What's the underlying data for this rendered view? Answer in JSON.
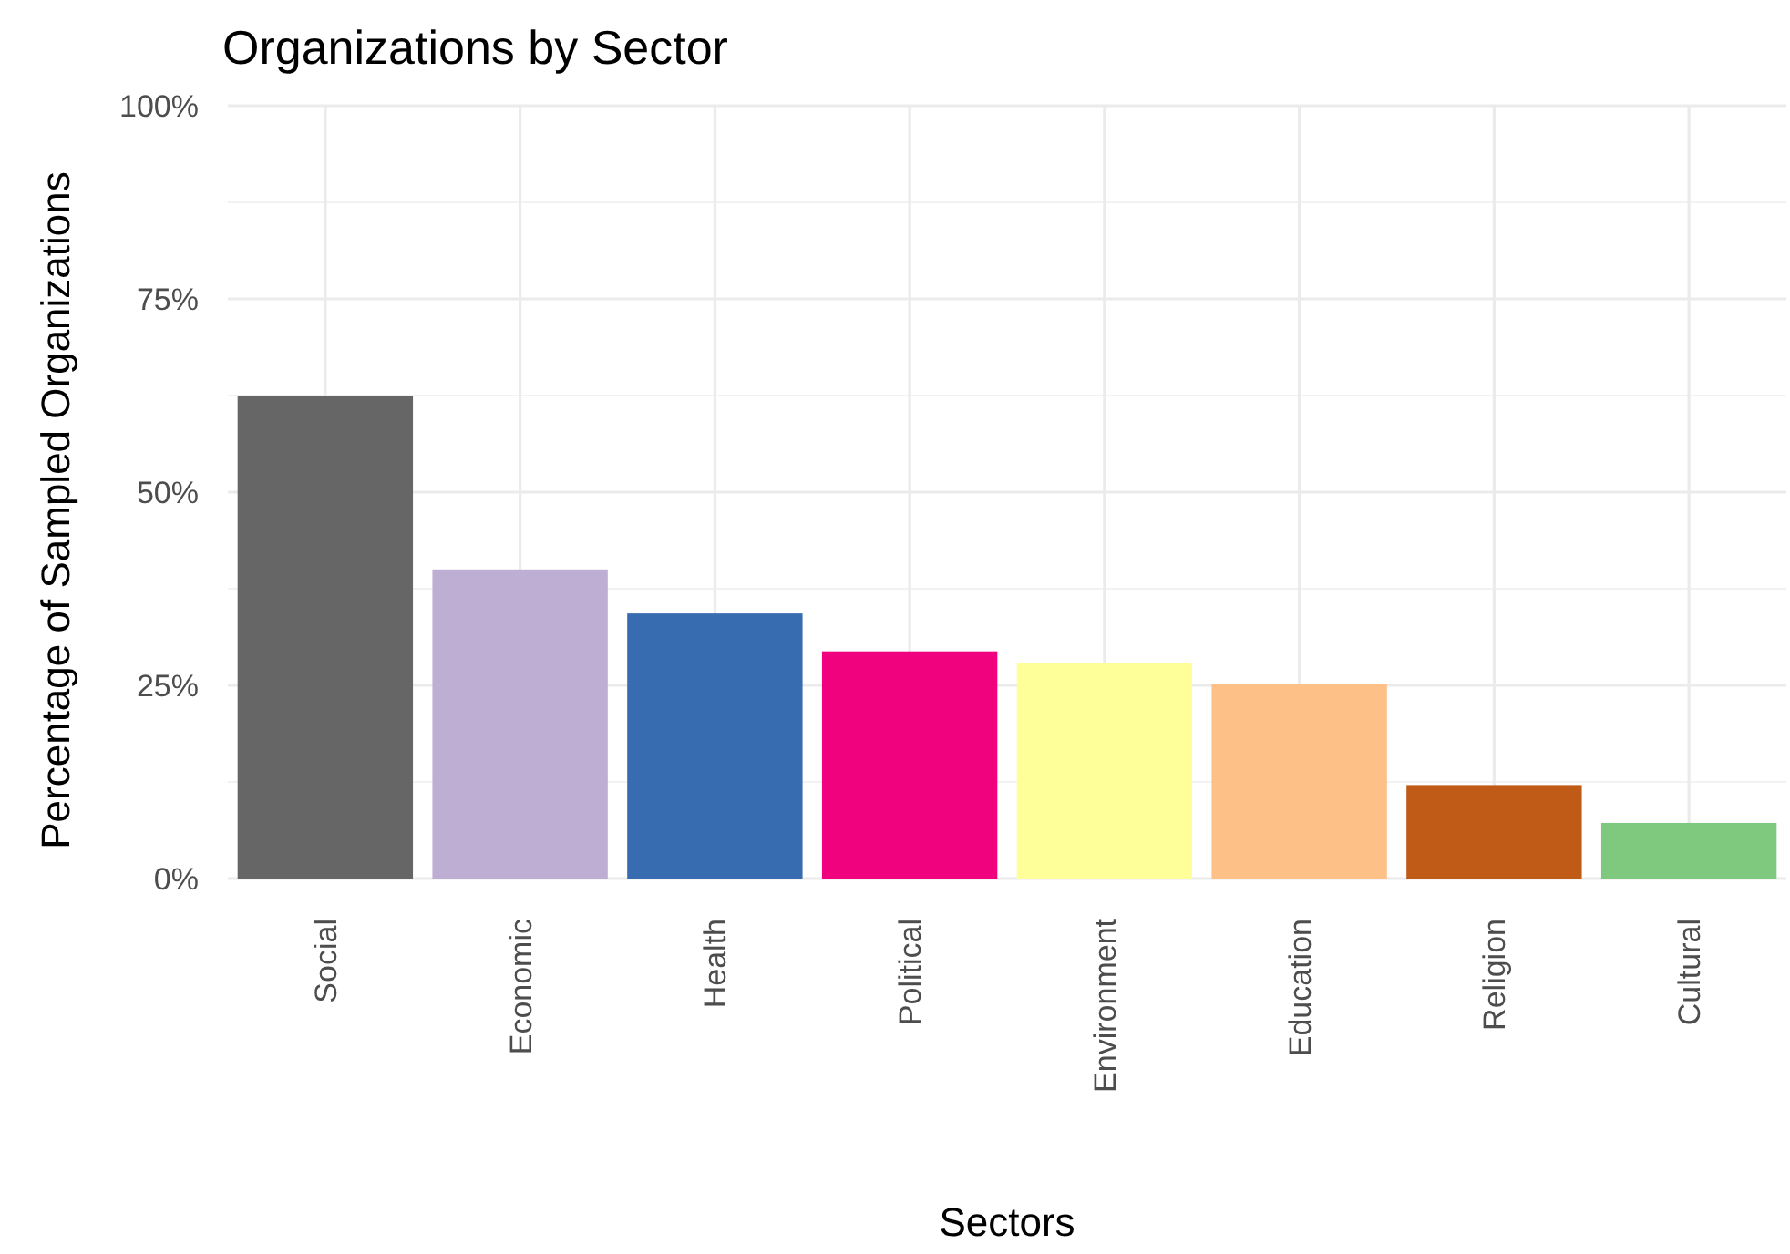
{
  "chart_data": {
    "type": "bar",
    "title": "Organizations by Sector",
    "xlabel": "Sectors",
    "ylabel": "Percentage of Sampled Organizations",
    "categories": [
      "Social",
      "Economic",
      "Health",
      "Political",
      "Environment",
      "Education",
      "Religion",
      "Cultural"
    ],
    "values": [
      62.5,
      40,
      34.3,
      29.4,
      27.9,
      25.2,
      12.1,
      7.2
    ],
    "colors": [
      "#666666",
      "#beaed4",
      "#386cb0",
      "#f0027f",
      "#ffff99",
      "#fdc086",
      "#bf5b17",
      "#7fc97f"
    ],
    "ylim": [
      0,
      100
    ],
    "yticks": [
      {
        "value": 0,
        "label": "0%"
      },
      {
        "value": 25,
        "label": "25%"
      },
      {
        "value": 50,
        "label": "50%"
      },
      {
        "value": 75,
        "label": "75%"
      },
      {
        "value": 100,
        "label": "100%"
      }
    ],
    "grid": true
  }
}
